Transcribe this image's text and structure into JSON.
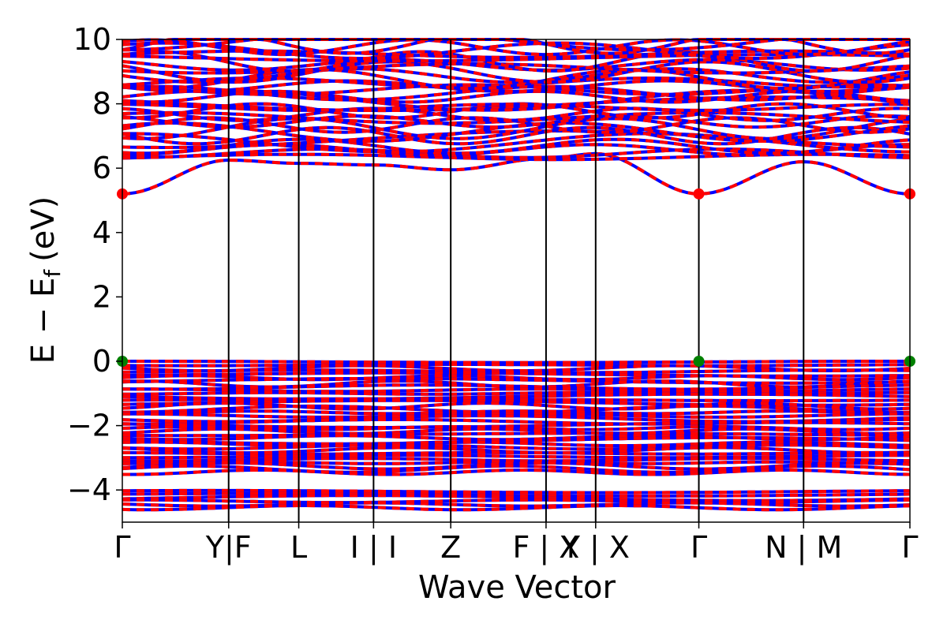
{
  "chart_data": {
    "type": "line",
    "xlabel": "Wave Vector",
    "ylabel": "E − E",
    "ylabel_sub": "f",
    "ylabel_unit": "(eV)",
    "ylim": [
      -5,
      10
    ],
    "xlim": [
      0,
      1
    ],
    "y_ticks": [
      -4,
      -2,
      0,
      2,
      4,
      6,
      8,
      10
    ],
    "y_tick_labels": [
      "−4",
      "−2",
      "0",
      "2",
      "4",
      "6",
      "8",
      "10"
    ],
    "kpoints": [
      {
        "pos": 0.0,
        "label": "Γ"
      },
      {
        "pos": 0.135,
        "label": "Y|F"
      },
      {
        "pos": 0.224,
        "label": "L"
      },
      {
        "pos": 0.319,
        "label": "I | I"
      },
      {
        "pos": 0.417,
        "label": "Z"
      },
      {
        "pos": 0.538,
        "label": "F | X"
      },
      {
        "pos": 0.601,
        "label": "Y | X"
      },
      {
        "pos": 0.732,
        "label": "Γ"
      },
      {
        "pos": 0.865,
        "label": "N | M"
      },
      {
        "pos": 1.0,
        "label": "Γ"
      }
    ],
    "conduction_band_minimum": [
      {
        "x": 0.0,
        "y": 5.2
      },
      {
        "x": 0.135,
        "y": 6.25
      },
      {
        "x": 0.224,
        "y": 6.15
      },
      {
        "x": 0.319,
        "y": 6.1
      },
      {
        "x": 0.417,
        "y": 5.95
      },
      {
        "x": 0.538,
        "y": 6.3
      },
      {
        "x": 0.601,
        "y": 6.45
      },
      {
        "x": 0.732,
        "y": 5.2
      },
      {
        "x": 0.865,
        "y": 6.2
      },
      {
        "x": 1.0,
        "y": 5.2
      }
    ],
    "valence_band_maximum_y": 0.0,
    "band_regions": [
      [
        -4.6,
        -4.0
      ],
      [
        -3.55,
        0.0
      ],
      [
        6.3,
        10.0
      ]
    ],
    "cbm_points": [
      {
        "x": 0.0,
        "y": 5.2
      },
      {
        "x": 0.732,
        "y": 5.2
      },
      {
        "x": 1.0,
        "y": 5.2
      }
    ],
    "vbm_points": [
      {
        "x": 0.0,
        "y": 0.0
      },
      {
        "x": 0.732,
        "y": 0.0
      },
      {
        "x": 1.0,
        "y": 0.0
      }
    ],
    "colors": {
      "spin_up": "#ff0000",
      "spin_down": "#0000ff",
      "extrema_cbm": "#ff0000",
      "extrema_vbm": "#008000",
      "kline": "#000000"
    }
  }
}
